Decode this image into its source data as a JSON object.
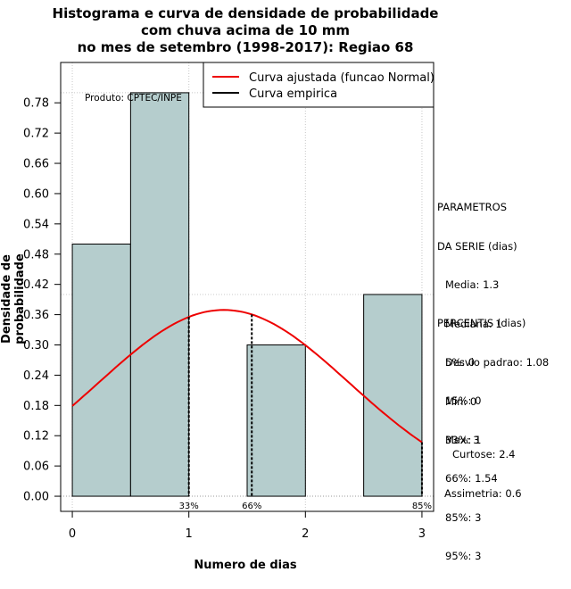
{
  "title": {
    "line1": "Histograma e curva de densidade de probabilidade",
    "line2": "com chuva acima de 10 mm",
    "line3": "no mes de setembro (1998-2017): Regiao 68"
  },
  "product_label": "Produto: CPTEC/INPE",
  "legend": {
    "fitted": "Curva ajustada (funcao Normal)",
    "empirical": "Curva empirica"
  },
  "parameters": {
    "heading1": "PARAMETROS",
    "heading2": "DA SERIE (dias)",
    "mean": "Media: 1.3",
    "median": "Mediana: 1",
    "std": "Desvio padrao: 1.08",
    "min": "Min: 0",
    "max": "Max: 3"
  },
  "percentiles": {
    "heading": "PERCENTIS (dias)",
    "p5": "5%: 0",
    "p15": "15%: 0",
    "p33": "33%: 1",
    "p66": "66%: 1.54",
    "p85": "85%: 3",
    "p95": "95%: 3"
  },
  "moments": {
    "kurtosis": "Curtose: 2.4",
    "skewness": "Assimetria: 0.6"
  },
  "colors": {
    "bar_fill": "#b5cdcd",
    "fitted_curve": "#ee0000",
    "grid": "#c8c8c8"
  },
  "chart_data": {
    "type": "bar",
    "xlabel": "Numero de dias",
    "ylabel": "Densidade de probabilidade",
    "xlim": [
      -0.1,
      3.1
    ],
    "ylim": [
      -0.03,
      0.86
    ],
    "xticks": [
      0,
      1,
      2,
      3
    ],
    "yticks": [
      0.0,
      0.06,
      0.12,
      0.18,
      0.24,
      0.3,
      0.36,
      0.42,
      0.48,
      0.54,
      0.6,
      0.66,
      0.72,
      0.78
    ],
    "ytick_labels": [
      "0.00",
      "0.06",
      "0.12",
      "0.18",
      "0.24",
      "0.30",
      "0.36",
      "0.42",
      "0.48",
      "0.54",
      "0.60",
      "0.66",
      "0.72",
      "0.78"
    ],
    "histogram": [
      {
        "x0": 0.0,
        "x1": 0.5,
        "density": 0.5
      },
      {
        "x0": 0.5,
        "x1": 1.0,
        "density": 0.8
      },
      {
        "x0": 1.0,
        "x1": 1.5,
        "density": 0.0
      },
      {
        "x0": 1.5,
        "x1": 2.0,
        "density": 0.3
      },
      {
        "x0": 2.0,
        "x1": 2.5,
        "density": 0.0
      },
      {
        "x0": 2.5,
        "x1": 3.0,
        "density": 0.4
      }
    ],
    "fitted_normal": {
      "mean": 1.3,
      "sd": 1.08,
      "from": 0,
      "to": 3
    },
    "grid_lines_y": [
      0.4,
      0.8
    ],
    "percentile_markers": [
      {
        "label": "33%",
        "x": 1.0
      },
      {
        "label": "66%",
        "x": 1.54
      },
      {
        "label": "85%",
        "x": 3.0
      }
    ],
    "legend_position": "top-right"
  }
}
